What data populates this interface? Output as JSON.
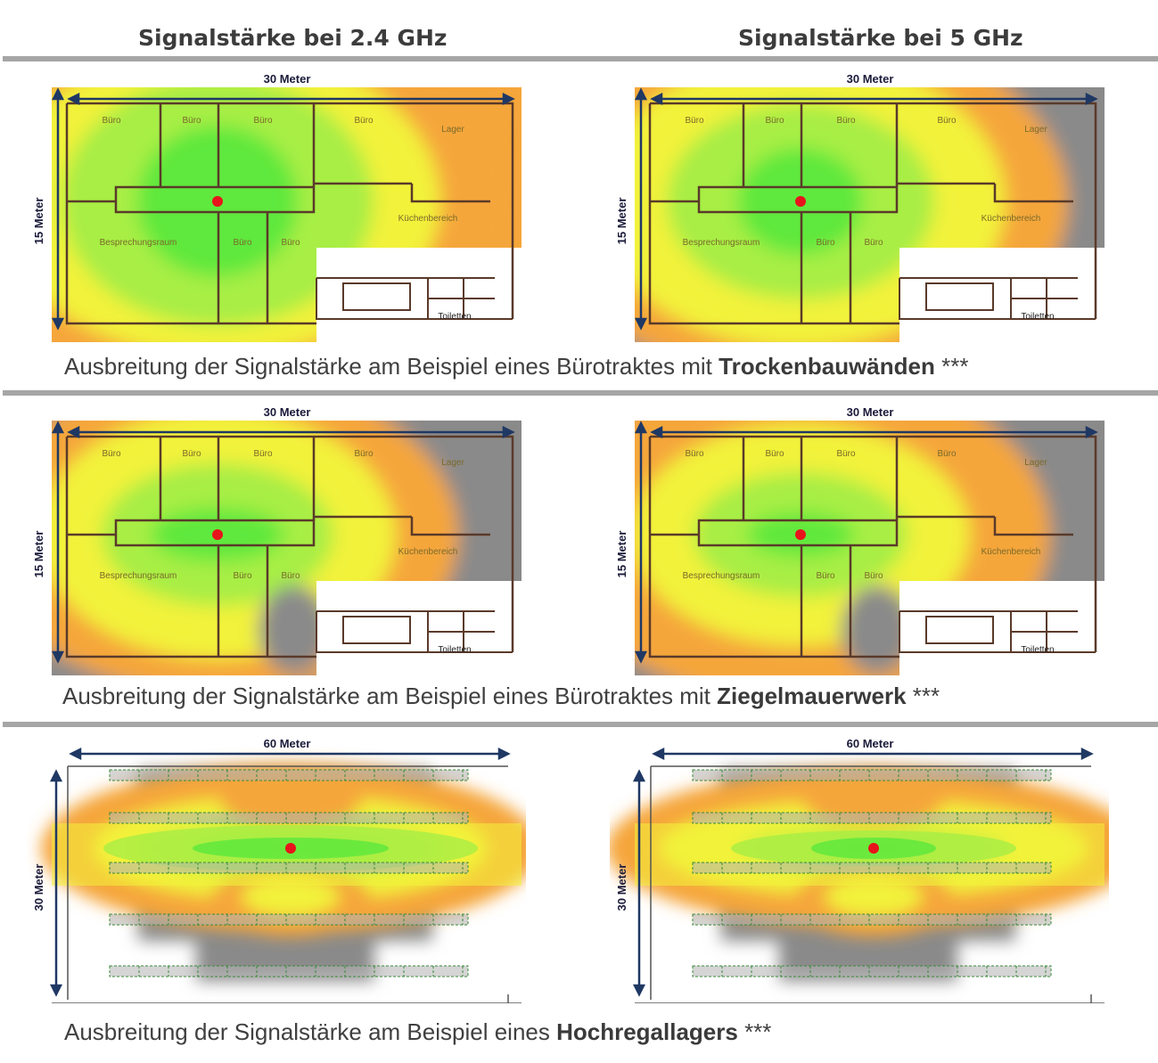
{
  "headers": {
    "left": "Signalstärke bei 2.4 GHz",
    "right": "Signalstärke bei 5 GHz"
  },
  "colors": {
    "green": "#5fe83c",
    "lightgreen": "#a8ee45",
    "yellow": "#f2f23a",
    "orange": "#f5a63a",
    "grey": "#8a8a8a",
    "arrow": "#1f3864",
    "router": "#e8141b",
    "rule": "#a6a6a6"
  },
  "sections": [
    {
      "caption_pre": "Ausbreitung der Signalstärke am Beispiel eines Bürotraktes mit ",
      "caption_bold": "Trockenbauwänden",
      "caption_post": " ***",
      "width_label": "30 Meter",
      "height_label": "15 Meter",
      "rooms": [
        "Büro",
        "Büro",
        "Büro",
        "Büro",
        "Lager",
        "Küchenbereich",
        "Besprechungsraum",
        "Büro",
        "Büro",
        "Toiletten"
      ]
    },
    {
      "caption_pre": "Ausbreitung der Signalstärke am Beispiel eines Bürotraktes mit ",
      "caption_bold": "Ziegelmauerwerk",
      "caption_post": " ***",
      "width_label": "30 Meter",
      "height_label": "15 Meter",
      "rooms": [
        "Büro",
        "Büro",
        "Büro",
        "Büro",
        "Lager",
        "Küchenbereich",
        "Besprechungsraum",
        "Büro",
        "Büro",
        "Toiletten"
      ]
    },
    {
      "caption_pre": "Ausbreitung der Signalstärke am Beispiel eines ",
      "caption_bold": "Hochregallagers",
      "caption_post": " ***",
      "width_label": "60 Meter",
      "height_label": "30 Meter"
    }
  ]
}
